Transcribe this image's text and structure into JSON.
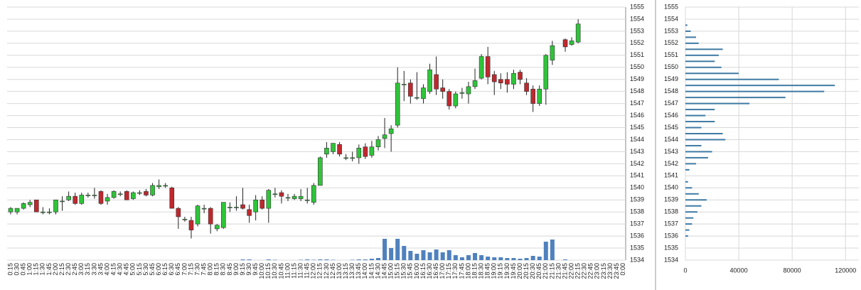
{
  "chart_data": [
    {
      "type": "candlestick",
      "categories": [
        "0:15",
        "0:30",
        "0:45",
        "1:00",
        "1:15",
        "1:30",
        "1:45",
        "2:00",
        "2:15",
        "2:30",
        "2:45",
        "3:00",
        "3:15",
        "3:30",
        "3:45",
        "4:00",
        "4:15",
        "4:30",
        "4:45",
        "5:00",
        "5:15",
        "5:30",
        "5:45",
        "6:00",
        "6:15",
        "6:30",
        "6:45",
        "7:00",
        "7:15",
        "7:30",
        "7:45",
        "8:00",
        "8:15",
        "8:30",
        "8:45",
        "9:00",
        "9:15",
        "9:30",
        "9:45",
        "10:00",
        "10:15",
        "10:30",
        "10:45",
        "11:00",
        "11:15",
        "11:30",
        "11:45",
        "12:00",
        "12:15",
        "12:30",
        "12:45",
        "13:00",
        "13:15",
        "13:30",
        "13:45",
        "14:00",
        "14:15",
        "14:30",
        "14:45",
        "15:00",
        "15:15",
        "15:30",
        "15:45",
        "16:00",
        "16:15",
        "16:30",
        "16:45",
        "17:00",
        "17:15",
        "17:30",
        "17:45",
        "18:00",
        "18:15",
        "18:30",
        "18:45",
        "19:00",
        "19:15",
        "19:30",
        "19:45",
        "20:00",
        "20:15",
        "20:30",
        "20:45",
        "21:00",
        "21:15",
        "21:30",
        "21:45",
        "22:00",
        "22:15",
        "22:30",
        "22:45",
        "23:00",
        "23:15",
        "23:30",
        "23:45",
        "0:00"
      ],
      "open": [
        1538.0,
        1538.0,
        1538.3,
        1538.6,
        1539.0,
        1538.0,
        1538.0,
        1538.0,
        1538.9,
        1539.0,
        1539.3,
        1538.7,
        1539.4,
        1539.4,
        1539.7,
        1538.9,
        1539.2,
        1539.5,
        1539.7,
        1539.1,
        1539.6,
        1539.7,
        1539.4,
        1540.1,
        1540.2,
        1540.0,
        1538.3,
        1537.4,
        1537.3,
        1537.0,
        1538.3,
        1538.3,
        1536.6,
        1536.7,
        1538.4,
        1538.4,
        1538.6,
        1538.2,
        1538.0,
        1539.0,
        1538.3,
        1539.5,
        1539.6,
        1539.2,
        1539.1,
        1539.1,
        1539.0,
        1538.8,
        1540.2,
        1542.8,
        1543.0,
        1543.6,
        1542.5,
        1542.5,
        1542.5,
        1543.4,
        1542.7,
        1543.4,
        1544.1,
        1544.5,
        1545.2,
        1548.6,
        1548.7,
        1547.5,
        1547.4,
        1548.0,
        1549.4,
        1548.3,
        1548.0,
        1546.8,
        1547.9,
        1547.8,
        1548.4,
        1549.1,
        1550.9,
        1549.4,
        1549.0,
        1549.0,
        1548.6,
        1549.6,
        1548.7,
        1548.2,
        1547.0,
        1548.2,
        1550.6,
        null,
        1552.3,
        1551.9,
        1552.1,
        null,
        null,
        null,
        null,
        null,
        null,
        null
      ],
      "high": [
        1538.4,
        1538.3,
        1538.8,
        1539.0,
        1539.0,
        1538.4,
        1538.3,
        1539.0,
        1539.3,
        1539.7,
        1539.6,
        1539.6,
        1539.6,
        1540.0,
        1539.8,
        1539.5,
        1539.8,
        1539.7,
        1539.8,
        1539.7,
        1539.8,
        1539.9,
        1540.4,
        1540.7,
        1540.4,
        1540.1,
        1538.4,
        1537.6,
        1537.6,
        1538.6,
        1538.6,
        1538.4,
        1537.0,
        1538.8,
        1538.8,
        1539.3,
        1540.0,
        1538.6,
        1539.4,
        1539.3,
        1539.9,
        1540.0,
        1539.8,
        1539.5,
        1539.5,
        1539.9,
        1540.0,
        1540.4,
        1542.6,
        1543.8,
        1543.7,
        1543.8,
        1542.8,
        1543.0,
        1543.6,
        1543.7,
        1543.9,
        1544.3,
        1545.8,
        1545.2,
        1550.0,
        1549.7,
        1549.0,
        1549.6,
        1548.6,
        1550.3,
        1550.9,
        1549.0,
        1548.2,
        1548.0,
        1548.3,
        1548.8,
        1549.9,
        1551.1,
        1551.7,
        1549.7,
        1549.5,
        1549.6,
        1549.8,
        1549.8,
        1549.1,
        1548.5,
        1548.5,
        1551.1,
        1552.2,
        null,
        1552.4,
        1552.5,
        1554.0,
        null,
        null,
        null,
        null,
        null,
        null,
        null
      ],
      "low": [
        1537.8,
        1537.8,
        1538.2,
        1538.4,
        1538.0,
        1537.8,
        1537.8,
        1537.8,
        1538.1,
        1538.9,
        1538.6,
        1538.6,
        1539.2,
        1539.1,
        1538.6,
        1538.6,
        1539.1,
        1539.3,
        1539.0,
        1539.0,
        1539.4,
        1539.3,
        1539.3,
        1539.9,
        1540.0,
        1538.3,
        1536.6,
        1537.2,
        1535.8,
        1536.8,
        1537.9,
        1536.2,
        1536.4,
        1536.6,
        1538.0,
        1538.1,
        1538.2,
        1537.1,
        1537.3,
        1538.2,
        1537.1,
        1539.2,
        1538.7,
        1538.9,
        1539.0,
        1538.9,
        1538.7,
        1538.6,
        1540.2,
        1542.5,
        1542.8,
        1542.6,
        1542.3,
        1542.2,
        1542.0,
        1542.4,
        1542.5,
        1543.1,
        1543.3,
        1543.0,
        1545.0,
        1547.2,
        1547.0,
        1547.3,
        1547.0,
        1547.8,
        1547.7,
        1547.4,
        1546.5,
        1546.6,
        1547.4,
        1547.0,
        1548.2,
        1549.0,
        1548.6,
        1547.7,
        1548.2,
        1547.9,
        1548.2,
        1548.6,
        1547.7,
        1546.3,
        1546.8,
        1546.9,
        1550.2,
        null,
        1551.3,
        1551.8,
        1552.0,
        null,
        null,
        null,
        null,
        null,
        null,
        null
      ],
      "close": [
        1538.3,
        1538.3,
        1538.7,
        1538.8,
        1538.0,
        1538.0,
        1538.0,
        1539.0,
        1538.9,
        1539.3,
        1538.7,
        1539.4,
        1539.4,
        1539.4,
        1538.7,
        1539.2,
        1539.7,
        1539.5,
        1539.0,
        1539.6,
        1539.6,
        1539.4,
        1540.2,
        1540.2,
        1540.2,
        1538.3,
        1537.6,
        1537.4,
        1536.5,
        1538.5,
        1538.3,
        1537.0,
        1536.9,
        1538.8,
        1538.4,
        1538.4,
        1538.3,
        1537.7,
        1539.0,
        1538.3,
        1539.8,
        1539.5,
        1539.3,
        1539.2,
        1539.3,
        1539.3,
        1539.0,
        1540.2,
        1542.5,
        1543.3,
        1543.7,
        1542.8,
        1542.5,
        1542.5,
        1543.3,
        1542.6,
        1543.4,
        1544.0,
        1544.4,
        1544.9,
        1548.7,
        1548.6,
        1547.6,
        1547.5,
        1548.3,
        1549.8,
        1548.2,
        1548.0,
        1546.8,
        1547.8,
        1547.9,
        1548.4,
        1548.9,
        1550.9,
        1549.2,
        1548.8,
        1548.7,
        1548.6,
        1549.5,
        1549.0,
        1548.0,
        1547.0,
        1548.2,
        1551.0,
        1551.8,
        null,
        1551.7,
        1552.2,
        1553.6,
        null,
        null,
        null,
        null,
        null,
        null,
        null
      ],
      "volume": [
        0,
        0,
        0,
        0,
        0,
        0,
        0,
        0,
        0,
        0,
        0,
        0,
        0,
        0,
        0,
        0,
        0,
        0,
        0,
        0,
        0,
        0,
        0,
        0,
        0,
        0,
        0,
        0,
        0,
        0,
        0,
        0,
        0,
        0,
        0,
        0,
        1000,
        1000,
        0,
        0,
        1000,
        500,
        0,
        0,
        0,
        500,
        1000,
        500,
        1000,
        1000,
        500,
        0,
        0,
        500,
        1000,
        1000,
        2000,
        3000,
        30000,
        17000,
        30000,
        20000,
        13000,
        9000,
        14000,
        11000,
        15000,
        11000,
        14000,
        7000,
        4000,
        7000,
        10000,
        7000,
        5000,
        4000,
        4000,
        3000,
        3000,
        2000,
        3000,
        6000,
        5000,
        26000,
        29000,
        null,
        1000,
        0,
        0,
        null,
        null,
        null,
        null,
        null,
        null,
        null
      ],
      "up_color": "#2fc43a",
      "down_color": "#c0282d",
      "volume_color": "#4f81bd",
      "ylim": [
        1534,
        1555
      ],
      "yticks": [
        1534,
        1535,
        1536,
        1537,
        1538,
        1539,
        1540,
        1541,
        1542,
        1543,
        1544,
        1545,
        1546,
        1547,
        1548,
        1549,
        1550,
        1551,
        1552,
        1553,
        1554,
        1555
      ],
      "grid": true
    },
    {
      "type": "profile",
      "levels": [
        1553.5,
        1553,
        1552.5,
        1552,
        1551.5,
        1551,
        1550.5,
        1550,
        1549.5,
        1549,
        1548.5,
        1548,
        1547.5,
        1547,
        1546.5,
        1546,
        1545.5,
        1545,
        1544.5,
        1544,
        1543.5,
        1543,
        1542.5,
        1542,
        1541.5,
        1541,
        1540.5,
        1540,
        1539.5,
        1539,
        1538.5,
        1538,
        1537.5,
        1537,
        1536.5,
        1536
      ],
      "values": [
        1500,
        4000,
        8000,
        10000,
        28000,
        25000,
        22000,
        27000,
        40000,
        70000,
        112000,
        104000,
        75000,
        48000,
        22000,
        15000,
        22000,
        12000,
        28000,
        30000,
        12000,
        20000,
        17000,
        8000,
        3000,
        0,
        2000,
        5000,
        10000,
        16000,
        12000,
        9000,
        6000,
        5000,
        3000,
        2000
      ],
      "color": "#3f7aa3",
      "xlim": [
        0,
        130000
      ],
      "xticks": [
        0,
        40000,
        80000,
        120000
      ],
      "ylim": [
        1534,
        1555
      ],
      "yticks": [
        1534,
        1535,
        1536,
        1537,
        1538,
        1539,
        1540,
        1541,
        1542,
        1543,
        1544,
        1545,
        1546,
        1547,
        1548,
        1549,
        1550,
        1551,
        1552,
        1553,
        1554,
        1555
      ],
      "grid": true
    }
  ]
}
